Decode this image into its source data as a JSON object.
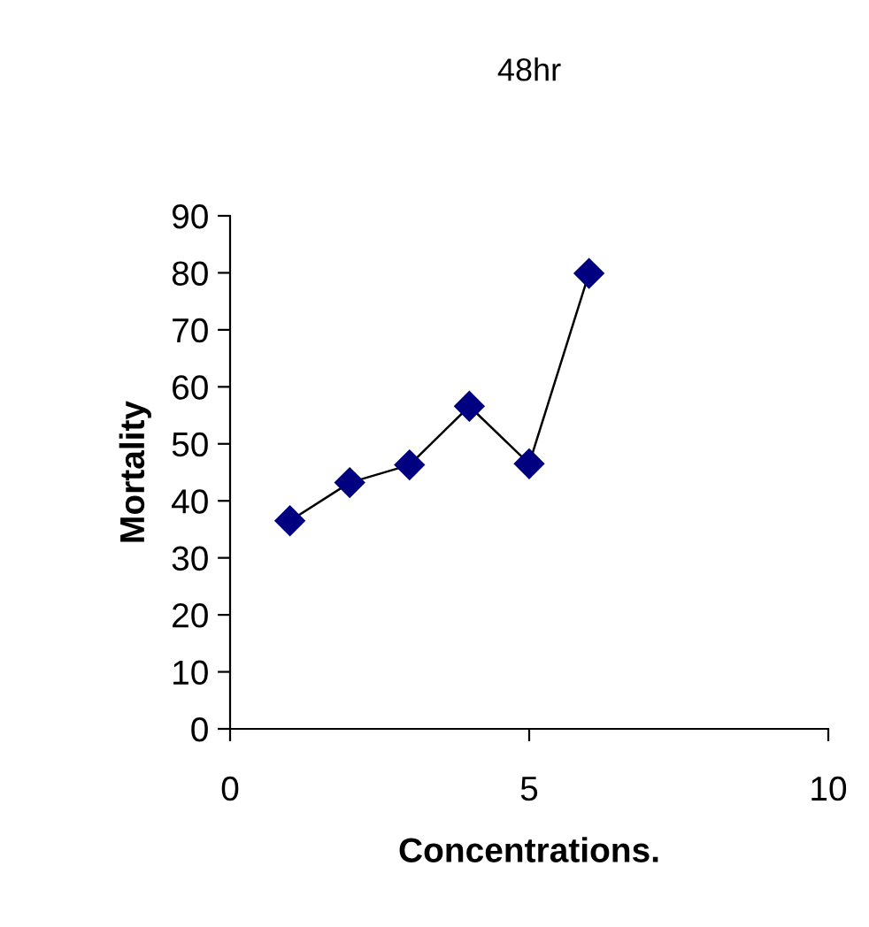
{
  "chart_data": {
    "type": "line",
    "title": "48hr",
    "xlabel": "Concentrations.",
    "ylabel": "Mortality",
    "x": [
      1,
      2,
      3,
      4,
      5,
      6
    ],
    "series": [
      {
        "color": "#000080",
        "values": [
          36.5,
          43.2,
          46.3,
          56.6,
          46.5,
          79.9
        ]
      }
    ],
    "xlim": [
      0,
      10
    ],
    "xticks": [
      0,
      5,
      10
    ],
    "ylim": [
      0,
      90
    ],
    "yticks": [
      0,
      10,
      20,
      30,
      40,
      50,
      60,
      70,
      80,
      90
    ],
    "marker": "diamond",
    "line_style": "solid",
    "grid": false,
    "legend": false
  }
}
